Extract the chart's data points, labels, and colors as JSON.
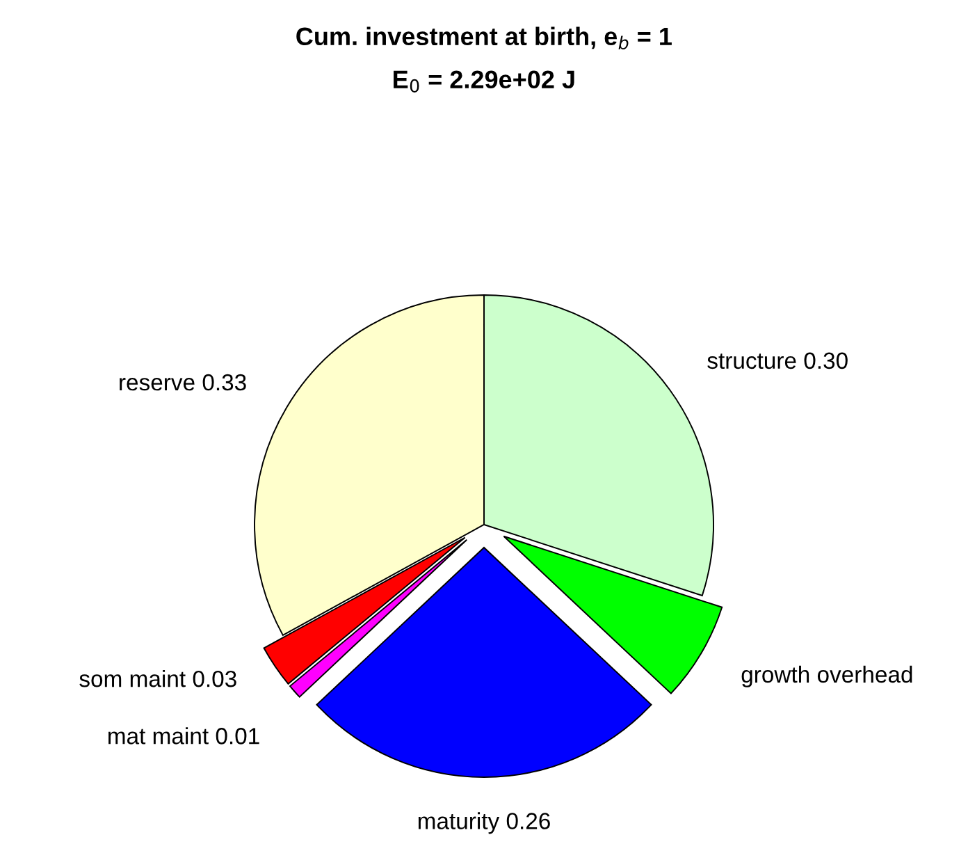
{
  "chart_data": {
    "type": "pie",
    "title": "Cum. investment at birth, e$_{b}$ = 1",
    "subtitle": "E$_{0}$ = 2.29e+02 J",
    "categories": [
      "structure",
      "growth overhead",
      "maturity",
      "mat maint",
      "som maint",
      "reserve"
    ],
    "values": [
      0.3,
      0.07,
      0.26,
      0.01,
      0.03,
      0.33
    ],
    "value_labels": [
      "0.30",
      null,
      "0.26",
      "0.01",
      "0.03",
      "0.33"
    ],
    "colors": [
      "#ccffcc",
      "#00ff00",
      "#0000ff",
      "#ff00ff",
      "#ff0000",
      "#ffffcc"
    ]
  }
}
